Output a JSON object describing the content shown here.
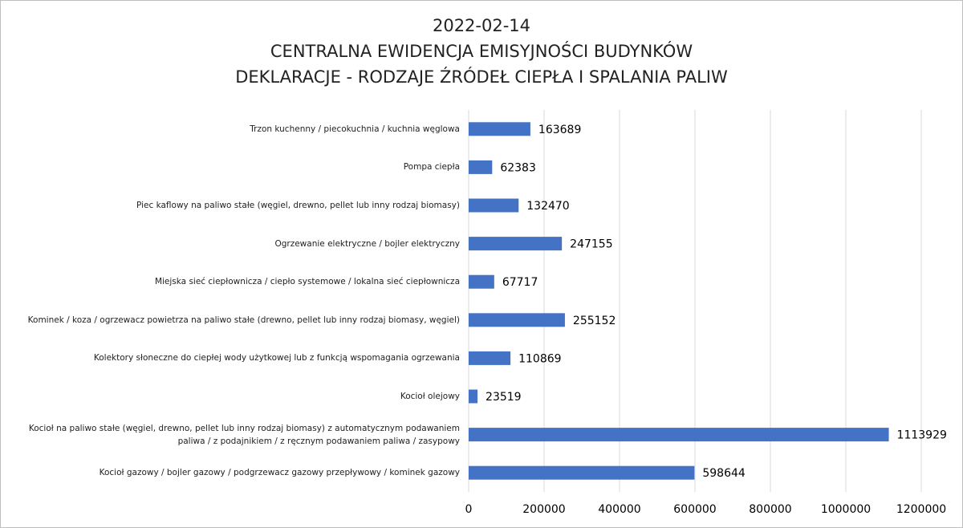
{
  "chart_data": {
    "type": "barh",
    "title": [
      "2022-02-14",
      "CENTRALNA EWIDENCJA EMISYJNOŚCI BUDYNKÓW",
      "DEKLARACJE - RODZAJE ŹRÓDEŁ CIEPŁA I SPALANIA PALIW"
    ],
    "categories": [
      "Trzon kuchenny / piecokuchnia / kuchnia węglowa",
      "Pompa ciepła",
      "Piec kaflowy na paliwo stałe (węgiel, drewno, pellet lub inny rodzaj biomasy)",
      "Ogrzewanie elektryczne / bojler elektryczny",
      "Miejska sieć ciepłownicza / ciepło systemowe / lokalna sieć ciepłownicza",
      "Kominek / koza / ogrzewacz powietrza na paliwo stałe (drewno, pellet lub inny rodzaj biomasy, węgiel)",
      "Kolektory słoneczne do ciepłej wody użytkowej lub z funkcją wspomagania ogrzewania",
      "Kocioł olejowy",
      "Kocioł na paliwo stałe (węgiel, drewno, pellet lub inny rodzaj biomasy) z automatycznym podawaniem paliwa / z podajnikiem / z ręcznym podawaniem paliwa / zasypowy",
      "Kocioł gazowy / bojler gazowy / podgrzewacz gazowy przepływowy / kominek gazowy"
    ],
    "values": [
      163689,
      62383,
      132470,
      247155,
      67717,
      255152,
      110869,
      23519,
      1113929,
      598644
    ],
    "color": "#4472c4",
    "xlim": [
      0,
      1200000
    ],
    "xticks": [
      0,
      200000,
      400000,
      600000,
      800000,
      1000000,
      1200000
    ],
    "grid": true
  }
}
